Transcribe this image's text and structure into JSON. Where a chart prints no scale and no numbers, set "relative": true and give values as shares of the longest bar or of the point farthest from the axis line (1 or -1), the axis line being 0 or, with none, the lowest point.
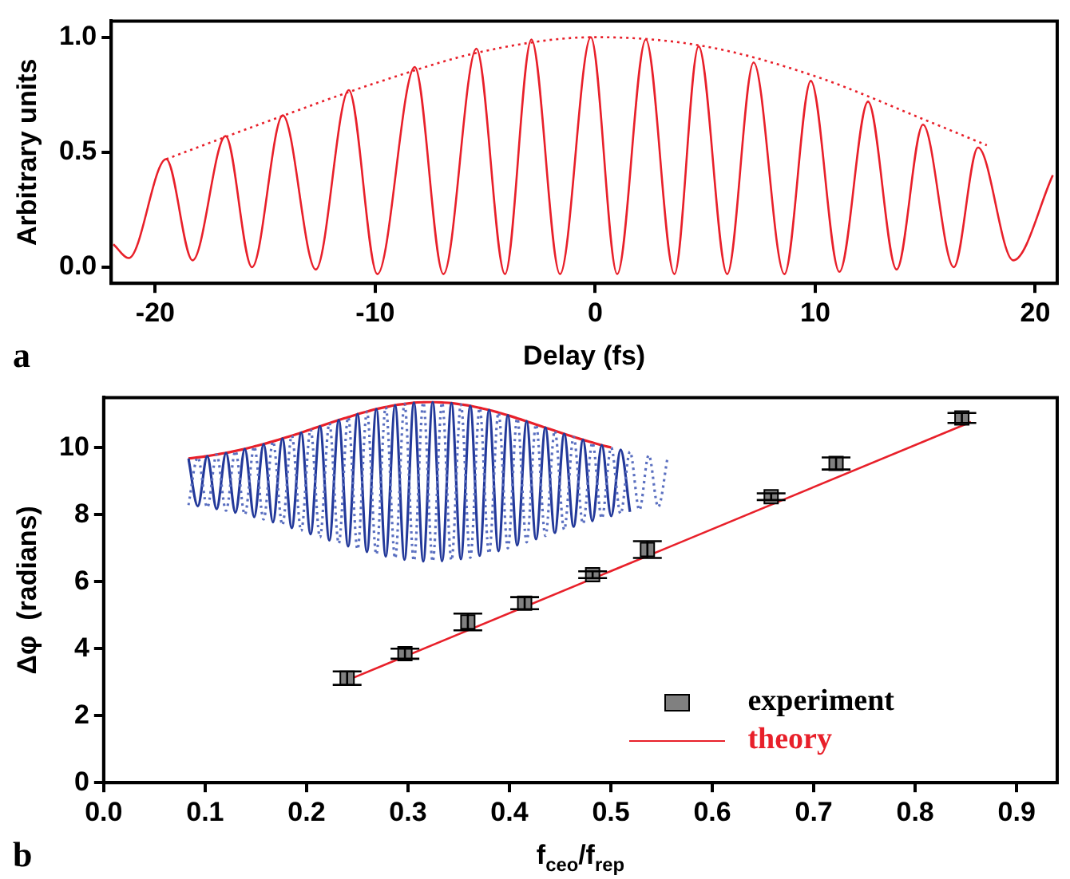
{
  "chart_data": [
    {
      "type": "line",
      "xlabel": "Delay (fs)",
      "ylabel": "Arbitrary units",
      "annotations": [
        "a"
      ],
      "xlim": [
        -22,
        21
      ],
      "xticks": [
        -20,
        -10,
        0,
        10,
        20
      ],
      "ylim": [
        -0.07,
        1.07
      ],
      "yticks": [
        {
          "value": 0,
          "label": "0.0"
        },
        {
          "value": 0.5,
          "label": "0.5"
        },
        {
          "value": 1,
          "label": "1.0"
        }
      ],
      "grid": false,
      "legend": false,
      "series": [
        {
          "color": "#e8202a",
          "line_style": "solid",
          "x": [
            -21.9,
            -21.2,
            -19.5,
            -18.3,
            -16.8,
            -15.6,
            -14.2,
            -12.7,
            -11.2,
            -9.9,
            -8.2,
            -6.9,
            -5.4,
            -4.1,
            -2.9,
            -1.6,
            -0.2,
            1.0,
            2.3,
            3.6,
            4.7,
            6.0,
            7.2,
            8.6,
            9.8,
            11.1,
            12.4,
            13.7,
            14.9,
            16.3,
            17.4,
            19.0,
            20.8
          ],
          "values": [
            0.1,
            0.04,
            0.47,
            0.03,
            0.57,
            0.0,
            0.66,
            -0.01,
            0.77,
            -0.03,
            0.87,
            -0.03,
            0.95,
            -0.03,
            0.99,
            -0.03,
            1.0,
            -0.03,
            0.99,
            -0.03,
            0.96,
            -0.03,
            0.89,
            -0.03,
            0.81,
            -0.02,
            0.72,
            -0.01,
            0.62,
            0.0,
            0.52,
            0.03,
            0.4
          ]
        },
        {
          "color": "#e8202a",
          "line_style": "dotted",
          "x": [
            -19.5,
            -15,
            -10,
            -5,
            0,
            5,
            10,
            15,
            17.8
          ],
          "values": [
            0.47,
            0.63,
            0.8,
            0.94,
            1.0,
            0.96,
            0.83,
            0.64,
            0.53
          ]
        }
      ]
    },
    {
      "type": "scatter",
      "xlabel": "f$_{ceo}$/f$_{rep}$",
      "ylabel": "Δφ  (radians)",
      "annotations": [
        "b"
      ],
      "xlim": [
        0,
        0.94
      ],
      "xticks": [
        {
          "value": 0,
          "label": "0.0"
        },
        0.1,
        0.2,
        0.3,
        0.4,
        0.5,
        0.6,
        0.7,
        0.8,
        0.9
      ],
      "ylim": [
        0,
        11.5
      ],
      "yticks": [
        0,
        2,
        4,
        6,
        8,
        10
      ],
      "grid": false,
      "legend": "bottom right",
      "series": [
        {
          "name": "experiment",
          "marker": "square",
          "color": "#808080",
          "x": [
            0.24,
            0.297,
            0.359,
            0.415,
            0.482,
            0.536,
            0.658,
            0.722,
            0.846
          ],
          "values": [
            3.12,
            3.85,
            4.8,
            5.36,
            6.21,
            6.96,
            8.54,
            9.53,
            10.89
          ],
          "errors": [
            0.2,
            0.15,
            0.25,
            0.18,
            0.1,
            0.25,
            0.1,
            0.18,
            0.15
          ]
        },
        {
          "name": "theory",
          "type": "line",
          "color": "#e8202a",
          "x": [
            0.242,
            0.855
          ],
          "values": [
            3.08,
            10.77
          ]
        }
      ]
    },
    {
      "type": "line",
      "relative": true,
      "tick_labels": false,
      "grid": false,
      "legend": false,
      "categories": [
        null,
        null,
        null,
        null,
        null,
        null,
        null,
        null,
        null,
        null,
        null,
        null,
        null,
        null,
        null,
        null,
        null,
        null,
        null,
        null,
        null,
        null,
        null,
        null,
        null,
        null,
        null,
        null,
        null,
        null,
        null,
        null,
        null,
        null,
        null,
        null,
        null,
        null,
        null,
        null,
        null,
        null,
        null,
        null,
        null,
        null,
        null,
        null,
        null,
        null,
        null,
        null
      ],
      "series": [
        {
          "color": "#5a6fc0",
          "line_style": "dotted",
          "values": [
            0.354,
            0.653,
            0.339,
            0.671,
            0.319,
            0.693,
            0.294,
            0.721,
            0.264,
            0.753,
            0.229,
            0.789,
            0.192,
            0.828,
            0.152,
            0.867,
            0.113,
            0.905,
            0.076,
            0.94,
            0.044,
            0.968,
            0.02,
            0.988,
            0.004,
            0.999,
            0,
            0.997,
            0.007,
            0.985,
            0.024,
            0.963,
            0.05,
            0.934,
            0.083,
            0.898,
            0.121,
            0.859,
            0.161,
            0.82,
            0.2,
            0.781,
            0.237,
            0.746,
            0.271,
            0.715,
            0.299,
            0.689,
            0.323,
            0.667,
            0.342,
            0.65
          ]
        },
        {
          "color": "#23399a",
          "line_style": "solid",
          "values": [
            0.646,
            0.347,
            0.661,
            0.329,
            0.681,
            0.307,
            0.706,
            0.279,
            0.736,
            0.247,
            0.771,
            0.211,
            0.808,
            0.172,
            0.848,
            0.133,
            0.887,
            0.095,
            0.924,
            0.06,
            0.956,
            0.032,
            0.98,
            0.012,
            0.996,
            0.001,
            1.0,
            0.003,
            0.993,
            0.015,
            0.976,
            0.037,
            0.95,
            0.066,
            0.917,
            0.102,
            0.879,
            0.141,
            0.839,
            0.18,
            0.8,
            0.219,
            0.763,
            0.254,
            0.729,
            0.285,
            0.701,
            0.311,
            null,
            null,
            null,
            null
          ]
        },
        {
          "color": "#e8202a",
          "line_style": "solid",
          "values": [
            0.646,
            0.653,
            0.661,
            0.671,
            0.681,
            0.693,
            0.706,
            0.721,
            0.736,
            0.753,
            0.771,
            0.789,
            0.808,
            0.828,
            0.848,
            0.867,
            0.887,
            0.905,
            0.924,
            0.94,
            0.956,
            0.968,
            0.98,
            0.988,
            0.996,
            0.999,
            1.0,
            0.997,
            0.993,
            0.985,
            0.976,
            0.963,
            0.95,
            0.934,
            0.917,
            0.898,
            0.879,
            0.859,
            0.839,
            0.82,
            0.8,
            0.781,
            0.763,
            0.746,
            0.729,
            0.715,
            null,
            null,
            null,
            null,
            null,
            null
          ]
        }
      ]
    }
  ]
}
